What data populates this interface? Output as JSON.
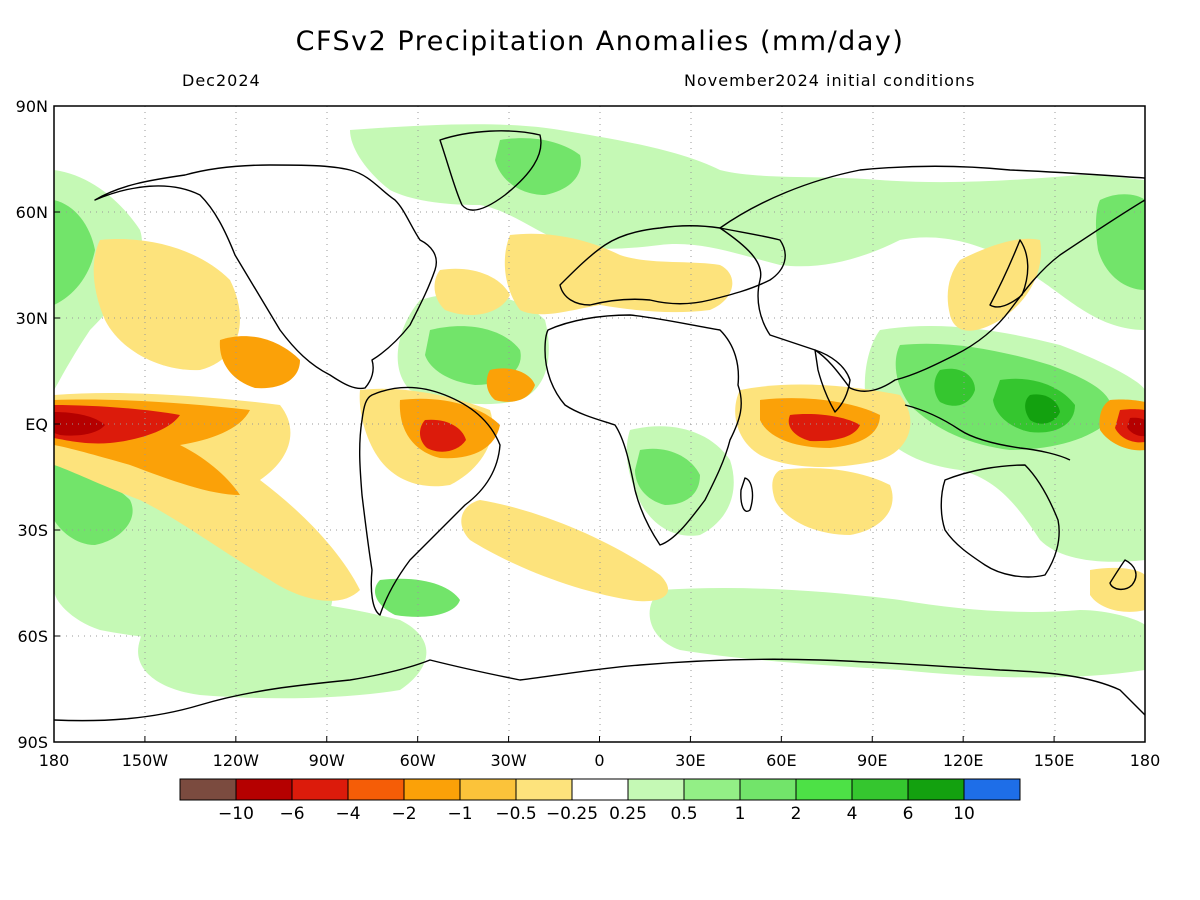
{
  "title": "CFSv2 Precipitation Anomalies (mm/day)",
  "valid_month": "Dec2024",
  "initial_conditions": "November2024 initial conditions",
  "map": {
    "lon_range": [
      -180,
      180
    ],
    "lat_range": [
      -90,
      90
    ],
    "lon_ticks": [
      {
        "value": -180,
        "label": "180"
      },
      {
        "value": -150,
        "label": "150W"
      },
      {
        "value": -120,
        "label": "120W"
      },
      {
        "value": -90,
        "label": "90W"
      },
      {
        "value": -60,
        "label": "60W"
      },
      {
        "value": -30,
        "label": "30W"
      },
      {
        "value": 0,
        "label": "0"
      },
      {
        "value": 30,
        "label": "30E"
      },
      {
        "value": 60,
        "label": "60E"
      },
      {
        "value": 90,
        "label": "90E"
      },
      {
        "value": 120,
        "label": "120E"
      },
      {
        "value": 150,
        "label": "150E"
      },
      {
        "value": 180,
        "label": "180"
      }
    ],
    "lat_ticks": [
      {
        "value": 90,
        "label": "90N"
      },
      {
        "value": 60,
        "label": "60N"
      },
      {
        "value": 30,
        "label": "30N"
      },
      {
        "value": 0,
        "label": "EQ"
      },
      {
        "value": -30,
        "label": "30S"
      },
      {
        "value": -60,
        "label": "60S"
      },
      {
        "value": -90,
        "label": "90S"
      }
    ],
    "grid": "dotted"
  },
  "colorbar": {
    "colors": [
      "#7b4b3f",
      "#b50000",
      "#dc1b0b",
      "#f55d07",
      "#fba108",
      "#fbc33a",
      "#fde37c",
      "#ffffff",
      "#c5f9b5",
      "#93ef86",
      "#72e46a",
      "#4de146",
      "#35c62f",
      "#13a10f",
      "#1e6ee8"
    ],
    "labels": [
      "−10",
      "−6",
      "−4",
      "−2",
      "−1",
      "−0.5",
      "−0.25",
      "0.25",
      "0.5",
      "1",
      "2",
      "4",
      "6",
      "10"
    ]
  },
  "colors": {
    "land_outline": "#000000",
    "grid": "#999999"
  }
}
